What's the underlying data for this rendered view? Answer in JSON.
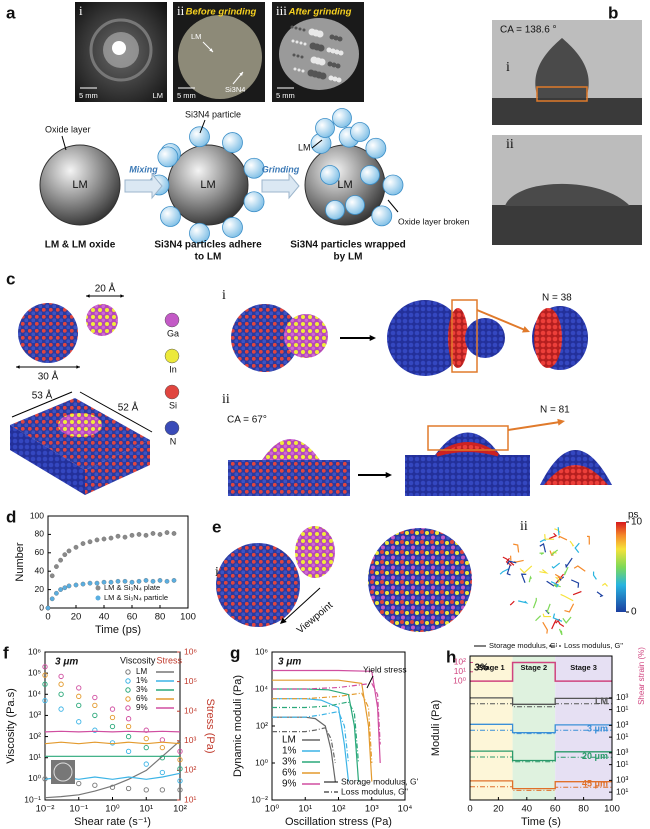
{
  "panels": {
    "a": {
      "label": "a",
      "photos": [
        {
          "numeral": "i",
          "scale": "5 mm",
          "tag": "LM"
        },
        {
          "numeral": "ii",
          "caption": "Before grinding",
          "scale": "5 mm",
          "labels": [
            "LM",
            "Si3N4"
          ]
        },
        {
          "numeral": "iii",
          "caption": "After grinding",
          "scale": "5 mm"
        }
      ],
      "schematic": {
        "annotations": [
          "Oxide layer",
          "Si3N4 particle",
          "LM",
          "Oxide layer broken"
        ],
        "sphere_labels": [
          "LM",
          "LM",
          "LM"
        ],
        "arrows": [
          "Mixing",
          "Grinding"
        ],
        "captions": [
          [
            "LM & LM oxide"
          ],
          [
            "Si3N4 particles adhere",
            "to LM"
          ],
          [
            "Si3N4 particles wrapped",
            "by LM"
          ]
        ]
      }
    },
    "b": {
      "label": "b",
      "contact_angle": "CA = 138.6 °",
      "numerals": [
        "i",
        "ii"
      ]
    },
    "c": {
      "label": "c",
      "dimensions": [
        "20 Å",
        "30 Å",
        "53 Å",
        "52 Å"
      ],
      "elements": [
        "Ga",
        "In",
        "Si",
        "N"
      ],
      "numerals": [
        "i",
        "ii"
      ],
      "counts": [
        "N = 38",
        "N = 81"
      ],
      "contact_angle": "CA = 67°"
    },
    "e": {
      "label": "e",
      "numerals": [
        "i",
        "ii"
      ],
      "viewpoint": "Viewpoint",
      "colorbar": {
        "label": "ps",
        "lim": [
          0,
          10
        ],
        "ticks": [
          0,
          10
        ]
      }
    }
  },
  "chart_data": [
    {
      "panel": "d",
      "type": "scatter",
      "x_label": "Time (ps)",
      "y_label": "Number",
      "x": [
        0,
        3,
        6,
        9,
        12,
        15,
        20,
        25,
        30,
        35,
        40,
        45,
        50,
        55,
        60,
        65,
        70,
        75,
        80,
        85,
        90
      ],
      "xlim": [
        0,
        100
      ],
      "xticks": [
        0,
        20,
        40,
        60,
        80,
        100
      ],
      "ylim": [
        0,
        100
      ],
      "yticks": [
        0,
        20,
        40,
        60,
        80,
        100
      ],
      "legend": "lower right",
      "series": [
        {
          "name": "LM & Si₃N₄ plate",
          "color": "#8a8a8a",
          "values": [
            0,
            35,
            45,
            52,
            58,
            62,
            66,
            70,
            72,
            74,
            75,
            76,
            78,
            77,
            79,
            80,
            79,
            81,
            80,
            82,
            81
          ]
        },
        {
          "name": "LM & Si₃N₄ particle",
          "color": "#5aaee0",
          "values": [
            0,
            10,
            16,
            20,
            22,
            24,
            25,
            26,
            27,
            27,
            28,
            28,
            29,
            29,
            28,
            29,
            30,
            29,
            30,
            29,
            30
          ]
        }
      ]
    },
    {
      "panel": "f",
      "type": "line",
      "annotation": "3 μm",
      "x_label": "Shear rate (s⁻¹)",
      "y_label": "Viscosity (Pa.s)",
      "y2_label": "Stress (Pa)",
      "legend_titles": [
        "Viscosity",
        "Stress"
      ],
      "log": true,
      "x": [
        0.01,
        0.03,
        0.1,
        0.3,
        1,
        3,
        10,
        30,
        100
      ],
      "xlim": [
        0.01,
        100
      ],
      "xticks": [
        {
          "value": 0.01,
          "label": "10⁻²"
        },
        {
          "value": 0.1,
          "label": "10⁻¹"
        },
        {
          "value": 1,
          "label": "10⁰"
        },
        {
          "value": 10,
          "label": "10¹"
        },
        {
          "value": 100,
          "label": "10²"
        }
      ],
      "ylim": [
        0.1,
        1000000
      ],
      "yticks": [
        {
          "value": 0.1,
          "label": "10⁻¹"
        },
        {
          "value": 1,
          "label": "10⁰"
        },
        {
          "value": 10,
          "label": "10¹"
        },
        {
          "value": 100,
          "label": "10²"
        },
        {
          "value": 1000,
          "label": "10³"
        },
        {
          "value": 10000,
          "label": "10⁴"
        },
        {
          "value": 100000,
          "label": "10⁵"
        },
        {
          "value": 1000000,
          "label": "10⁶"
        }
      ],
      "y2lim": [
        10,
        1000000
      ],
      "y2ticks": [
        {
          "value": 10,
          "label": "10¹"
        },
        {
          "value": 100,
          "label": "10²"
        },
        {
          "value": 1000,
          "label": "10³"
        },
        {
          "value": 10000,
          "label": "10⁴"
        },
        {
          "value": 100000,
          "label": "10⁵"
        },
        {
          "value": 1000000,
          "label": "10⁶"
        }
      ],
      "series": [
        {
          "name": "LM",
          "color": "#777777",
          "style": "markers",
          "values": [
            1,
            0.8,
            0.6,
            0.5,
            0.4,
            0.35,
            0.3,
            0.3,
            0.3
          ]
        },
        {
          "name": "1%",
          "color": "#3cb4e6",
          "style": "markers",
          "values": [
            5000,
            2000,
            500,
            200,
            50,
            20,
            5,
            2,
            0.8
          ]
        },
        {
          "name": "3%",
          "color": "#2aa87a",
          "style": "markers",
          "values": [
            30000,
            10000,
            3000,
            1000,
            300,
            100,
            30,
            10,
            3
          ]
        },
        {
          "name": "6%",
          "color": "#e39a2d",
          "style": "markers",
          "values": [
            80000,
            30000,
            8000,
            3000,
            800,
            300,
            80,
            30,
            8
          ]
        },
        {
          "name": "9%",
          "color": "#d04ea0",
          "style": "markers",
          "values": [
            200000,
            70000,
            20000,
            7000,
            2000,
            700,
            200,
            70,
            20
          ]
        },
        {
          "color": "#777777",
          "axis": "y2",
          "values": [
            12,
            13,
            15,
            20,
            30,
            50,
            100,
            300,
            1000
          ]
        },
        {
          "color": "#3cb4e6",
          "axis": "y2",
          "values": [
            50,
            60,
            50,
            60,
            50,
            60,
            50,
            60,
            80
          ]
        },
        {
          "color": "#2aa87a",
          "axis": "y2",
          "values": [
            300,
            300,
            300,
            300,
            300,
            300,
            300,
            300,
            300
          ]
        },
        {
          "color": "#e39a2d",
          "axis": "y2",
          "values": [
            800,
            900,
            800,
            900,
            800,
            900,
            800,
            900,
            800
          ]
        },
        {
          "color": "#d04ea0",
          "axis": "y2",
          "values": [
            2000,
            2100,
            2000,
            2100,
            2000,
            2100,
            2000,
            2100,
            2000
          ]
        }
      ]
    },
    {
      "panel": "g",
      "type": "line",
      "annotation": "3 μm",
      "marker_note": "Yield stress",
      "x_label": "Oscillation stress (Pa)",
      "y_label": "Dynamic moduli (Pa)",
      "log": true,
      "style_labels": [
        "Storage modulus, G'",
        "Loss modulus, G''"
      ],
      "xlim": [
        1,
        10000
      ],
      "xticks": [
        {
          "value": 1,
          "label": "10⁰"
        },
        {
          "value": 10,
          "label": "10¹"
        },
        {
          "value": 100,
          "label": "10²"
        },
        {
          "value": 1000,
          "label": "10³"
        },
        {
          "value": 10000,
          "label": "10⁴"
        }
      ],
      "ylim": [
        0.01,
        1000000
      ],
      "yticks": [
        {
          "value": 0.01,
          "label": "10⁻²"
        },
        {
          "value": 1,
          "label": "10⁰"
        },
        {
          "value": 100,
          "label": "10²"
        },
        {
          "value": 10000,
          "label": "10⁴"
        },
        {
          "value": 1000000,
          "label": "10⁶"
        }
      ],
      "series": [
        {
          "name": "LM",
          "color": "#666666",
          "dash": "solid",
          "x": [
            1,
            10,
            20,
            40,
            60,
            80
          ],
          "values": [
            300,
            300,
            250,
            100,
            5,
            0.1
          ]
        },
        {
          "name": "1%",
          "color": "#3cb4e6",
          "dash": "solid",
          "x": [
            1,
            10,
            30,
            100,
            150,
            200
          ],
          "values": [
            3000,
            3000,
            2500,
            1000,
            10,
            0.1
          ]
        },
        {
          "name": "3%",
          "color": "#2aa87a",
          "dash": "solid",
          "x": [
            1,
            10,
            50,
            200,
            300,
            400
          ],
          "values": [
            10000,
            10000,
            9000,
            5000,
            100,
            0.1
          ]
        },
        {
          "name": "6%",
          "color": "#e39a2d",
          "dash": "solid",
          "x": [
            1,
            10,
            100,
            500,
            800,
            1000
          ],
          "values": [
            30000,
            30000,
            30000,
            20000,
            100,
            0.1
          ]
        },
        {
          "name": "9%",
          "color": "#d04ea0",
          "dash": "solid",
          "x": [
            1,
            10,
            100,
            1000,
            1500,
            1800
          ],
          "values": [
            100000,
            100000,
            100000,
            90000,
            1000,
            1
          ]
        },
        {
          "color": "#666666",
          "dash": "dashdot",
          "x": [
            1,
            10,
            20,
            40,
            60,
            80
          ],
          "values": [
            50,
            50,
            60,
            80,
            20,
            1
          ]
        },
        {
          "color": "#3cb4e6",
          "dash": "dashdot",
          "x": [
            1,
            10,
            30,
            100,
            150,
            200
          ],
          "values": [
            300,
            300,
            400,
            600,
            100,
            1
          ]
        },
        {
          "color": "#2aa87a",
          "dash": "dashdot",
          "x": [
            1,
            10,
            50,
            200,
            300,
            400
          ],
          "values": [
            1000,
            1000,
            1200,
            2000,
            500,
            1
          ]
        },
        {
          "color": "#e39a2d",
          "dash": "dashdot",
          "x": [
            1,
            10,
            100,
            500,
            800,
            1000
          ],
          "values": [
            3000,
            3000,
            4000,
            6000,
            1000,
            1
          ]
        },
        {
          "color": "#d04ea0",
          "dash": "dashdot",
          "x": [
            1,
            10,
            100,
            1000,
            1500,
            1800
          ],
          "values": [
            10000,
            10000,
            12000,
            20000,
            5000,
            10
          ]
        }
      ]
    },
    {
      "panel": "h",
      "type": "line",
      "annotation": "3%",
      "x_label": "Time (s)",
      "y_label": "Moduli (Pa)",
      "style_labels": [
        "Storage modulus, G'",
        "Loss modulus, G''"
      ],
      "stages": [
        "Stage 1",
        "Stage 2",
        "Stage 3"
      ],
      "xlim": [
        0,
        100
      ],
      "xticks": [
        0,
        20,
        40,
        60,
        80,
        100
      ],
      "x": [
        0,
        30,
        30,
        60,
        60,
        100
      ],
      "strain": {
        "y_label": "Shear strain (%)",
        "color": "#d0447f",
        "log": true,
        "ylim": [
          0.3,
          300
        ],
        "yticks": [
          {
            "value": 1,
            "label": "10⁰"
          },
          {
            "value": 10,
            "label": "10¹"
          },
          {
            "value": 100,
            "label": "10²"
          }
        ],
        "values": [
          1,
          1,
          100,
          100,
          1,
          1
        ]
      },
      "subplots": [
        {
          "name": "LM",
          "color": "#555555",
          "ylim": [
            1,
            10000
          ],
          "yticks": [
            {
              "value": 10,
              "label": "10¹"
            },
            {
              "value": 1000,
              "label": "10³"
            }
          ],
          "storage": [
            1000,
            1000,
            80,
            80,
            800,
            800
          ],
          "loss": [
            100,
            100,
            30,
            30,
            100,
            100
          ]
        },
        {
          "name": "3 μm",
          "color": "#3a8fd8",
          "ylim": [
            1,
            10000
          ],
          "yticks": [
            {
              "value": 10,
              "label": "10¹"
            },
            {
              "value": 1000,
              "label": "10³"
            }
          ],
          "storage": [
            1500,
            1500,
            60,
            60,
            1200,
            1200
          ],
          "loss": [
            150,
            150,
            40,
            40,
            150,
            150
          ]
        },
        {
          "name": "20 μm",
          "color": "#2a9a6a",
          "ylim": [
            1,
            10000
          ],
          "yticks": [
            {
              "value": 10,
              "label": "10¹"
            },
            {
              "value": 1000,
              "label": "10³"
            }
          ],
          "storage": [
            2000,
            2000,
            50,
            50,
            1500,
            1500
          ],
          "loss": [
            200,
            200,
            30,
            30,
            180,
            180
          ]
        },
        {
          "name": "45 μm",
          "color": "#e0702a",
          "ylim": [
            1,
            10000
          ],
          "yticks": [
            {
              "value": 10,
              "label": "10¹"
            },
            {
              "value": 1000,
              "label": "10³"
            }
          ],
          "storage": [
            800,
            800,
            40,
            40,
            600,
            600
          ],
          "loss": [
            80,
            80,
            20,
            20,
            70,
            70
          ]
        }
      ]
    }
  ]
}
